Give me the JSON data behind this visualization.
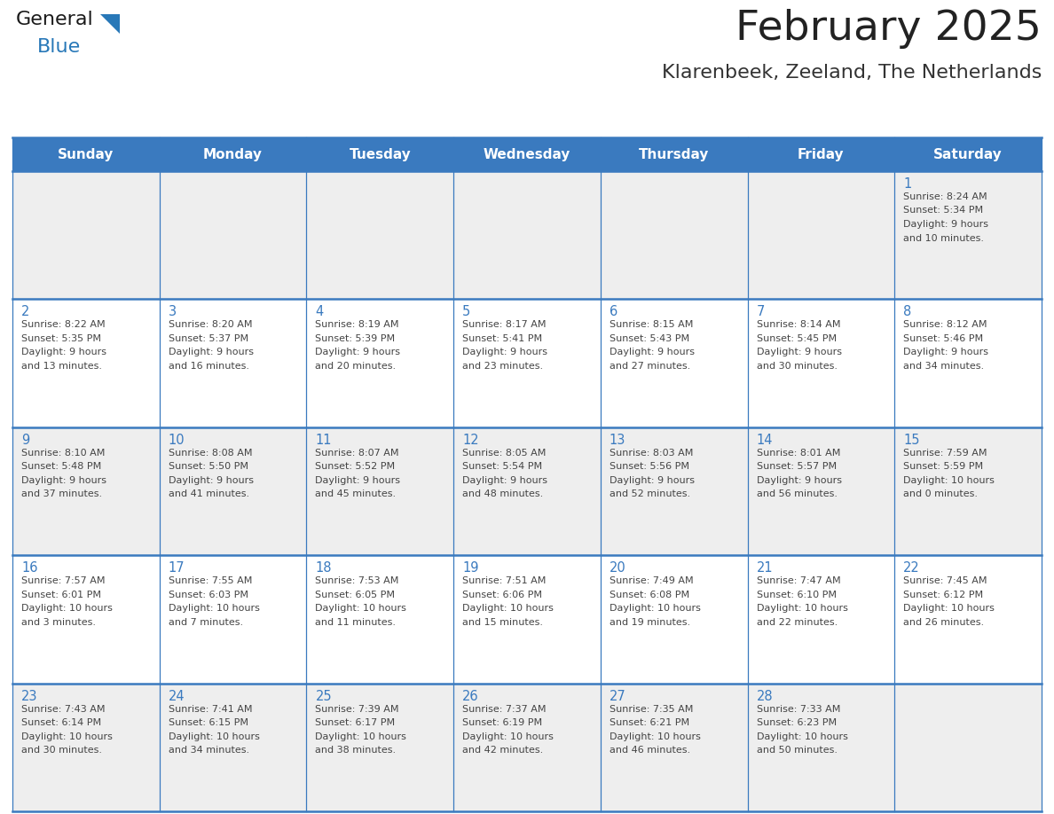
{
  "title": "February 2025",
  "subtitle": "Klarenbeek, Zeeland, The Netherlands",
  "header_bg": "#3a7abf",
  "header_text_color": "#ffffff",
  "cell_bg_light": "#eeeeee",
  "cell_bg_white": "#ffffff",
  "border_color": "#3a7abf",
  "day_headers": [
    "Sunday",
    "Monday",
    "Tuesday",
    "Wednesday",
    "Thursday",
    "Friday",
    "Saturday"
  ],
  "title_color": "#222222",
  "subtitle_color": "#333333",
  "day_number_color": "#3a7abf",
  "cell_text_color": "#444444",
  "logo_general_color": "#1a1a1a",
  "logo_blue_color": "#2878b8",
  "weeks": [
    [
      {
        "day": null,
        "sunrise": null,
        "sunset": null,
        "daylight_line1": null,
        "daylight_line2": null
      },
      {
        "day": null,
        "sunrise": null,
        "sunset": null,
        "daylight_line1": null,
        "daylight_line2": null
      },
      {
        "day": null,
        "sunrise": null,
        "sunset": null,
        "daylight_line1": null,
        "daylight_line2": null
      },
      {
        "day": null,
        "sunrise": null,
        "sunset": null,
        "daylight_line1": null,
        "daylight_line2": null
      },
      {
        "day": null,
        "sunrise": null,
        "sunset": null,
        "daylight_line1": null,
        "daylight_line2": null
      },
      {
        "day": null,
        "sunrise": null,
        "sunset": null,
        "daylight_line1": null,
        "daylight_line2": null
      },
      {
        "day": 1,
        "sunrise": "Sunrise: 8:24 AM",
        "sunset": "Sunset: 5:34 PM",
        "daylight_line1": "Daylight: 9 hours",
        "daylight_line2": "and 10 minutes."
      }
    ],
    [
      {
        "day": 2,
        "sunrise": "Sunrise: 8:22 AM",
        "sunset": "Sunset: 5:35 PM",
        "daylight_line1": "Daylight: 9 hours",
        "daylight_line2": "and 13 minutes."
      },
      {
        "day": 3,
        "sunrise": "Sunrise: 8:20 AM",
        "sunset": "Sunset: 5:37 PM",
        "daylight_line1": "Daylight: 9 hours",
        "daylight_line2": "and 16 minutes."
      },
      {
        "day": 4,
        "sunrise": "Sunrise: 8:19 AM",
        "sunset": "Sunset: 5:39 PM",
        "daylight_line1": "Daylight: 9 hours",
        "daylight_line2": "and 20 minutes."
      },
      {
        "day": 5,
        "sunrise": "Sunrise: 8:17 AM",
        "sunset": "Sunset: 5:41 PM",
        "daylight_line1": "Daylight: 9 hours",
        "daylight_line2": "and 23 minutes."
      },
      {
        "day": 6,
        "sunrise": "Sunrise: 8:15 AM",
        "sunset": "Sunset: 5:43 PM",
        "daylight_line1": "Daylight: 9 hours",
        "daylight_line2": "and 27 minutes."
      },
      {
        "day": 7,
        "sunrise": "Sunrise: 8:14 AM",
        "sunset": "Sunset: 5:45 PM",
        "daylight_line1": "Daylight: 9 hours",
        "daylight_line2": "and 30 minutes."
      },
      {
        "day": 8,
        "sunrise": "Sunrise: 8:12 AM",
        "sunset": "Sunset: 5:46 PM",
        "daylight_line1": "Daylight: 9 hours",
        "daylight_line2": "and 34 minutes."
      }
    ],
    [
      {
        "day": 9,
        "sunrise": "Sunrise: 8:10 AM",
        "sunset": "Sunset: 5:48 PM",
        "daylight_line1": "Daylight: 9 hours",
        "daylight_line2": "and 37 minutes."
      },
      {
        "day": 10,
        "sunrise": "Sunrise: 8:08 AM",
        "sunset": "Sunset: 5:50 PM",
        "daylight_line1": "Daylight: 9 hours",
        "daylight_line2": "and 41 minutes."
      },
      {
        "day": 11,
        "sunrise": "Sunrise: 8:07 AM",
        "sunset": "Sunset: 5:52 PM",
        "daylight_line1": "Daylight: 9 hours",
        "daylight_line2": "and 45 minutes."
      },
      {
        "day": 12,
        "sunrise": "Sunrise: 8:05 AM",
        "sunset": "Sunset: 5:54 PM",
        "daylight_line1": "Daylight: 9 hours",
        "daylight_line2": "and 48 minutes."
      },
      {
        "day": 13,
        "sunrise": "Sunrise: 8:03 AM",
        "sunset": "Sunset: 5:56 PM",
        "daylight_line1": "Daylight: 9 hours",
        "daylight_line2": "and 52 minutes."
      },
      {
        "day": 14,
        "sunrise": "Sunrise: 8:01 AM",
        "sunset": "Sunset: 5:57 PM",
        "daylight_line1": "Daylight: 9 hours",
        "daylight_line2": "and 56 minutes."
      },
      {
        "day": 15,
        "sunrise": "Sunrise: 7:59 AM",
        "sunset": "Sunset: 5:59 PM",
        "daylight_line1": "Daylight: 10 hours",
        "daylight_line2": "and 0 minutes."
      }
    ],
    [
      {
        "day": 16,
        "sunrise": "Sunrise: 7:57 AM",
        "sunset": "Sunset: 6:01 PM",
        "daylight_line1": "Daylight: 10 hours",
        "daylight_line2": "and 3 minutes."
      },
      {
        "day": 17,
        "sunrise": "Sunrise: 7:55 AM",
        "sunset": "Sunset: 6:03 PM",
        "daylight_line1": "Daylight: 10 hours",
        "daylight_line2": "and 7 minutes."
      },
      {
        "day": 18,
        "sunrise": "Sunrise: 7:53 AM",
        "sunset": "Sunset: 6:05 PM",
        "daylight_line1": "Daylight: 10 hours",
        "daylight_line2": "and 11 minutes."
      },
      {
        "day": 19,
        "sunrise": "Sunrise: 7:51 AM",
        "sunset": "Sunset: 6:06 PM",
        "daylight_line1": "Daylight: 10 hours",
        "daylight_line2": "and 15 minutes."
      },
      {
        "day": 20,
        "sunrise": "Sunrise: 7:49 AM",
        "sunset": "Sunset: 6:08 PM",
        "daylight_line1": "Daylight: 10 hours",
        "daylight_line2": "and 19 minutes."
      },
      {
        "day": 21,
        "sunrise": "Sunrise: 7:47 AM",
        "sunset": "Sunset: 6:10 PM",
        "daylight_line1": "Daylight: 10 hours",
        "daylight_line2": "and 22 minutes."
      },
      {
        "day": 22,
        "sunrise": "Sunrise: 7:45 AM",
        "sunset": "Sunset: 6:12 PM",
        "daylight_line1": "Daylight: 10 hours",
        "daylight_line2": "and 26 minutes."
      }
    ],
    [
      {
        "day": 23,
        "sunrise": "Sunrise: 7:43 AM",
        "sunset": "Sunset: 6:14 PM",
        "daylight_line1": "Daylight: 10 hours",
        "daylight_line2": "and 30 minutes."
      },
      {
        "day": 24,
        "sunrise": "Sunrise: 7:41 AM",
        "sunset": "Sunset: 6:15 PM",
        "daylight_line1": "Daylight: 10 hours",
        "daylight_line2": "and 34 minutes."
      },
      {
        "day": 25,
        "sunrise": "Sunrise: 7:39 AM",
        "sunset": "Sunset: 6:17 PM",
        "daylight_line1": "Daylight: 10 hours",
        "daylight_line2": "and 38 minutes."
      },
      {
        "day": 26,
        "sunrise": "Sunrise: 7:37 AM",
        "sunset": "Sunset: 6:19 PM",
        "daylight_line1": "Daylight: 10 hours",
        "daylight_line2": "and 42 minutes."
      },
      {
        "day": 27,
        "sunrise": "Sunrise: 7:35 AM",
        "sunset": "Sunset: 6:21 PM",
        "daylight_line1": "Daylight: 10 hours",
        "daylight_line2": "and 46 minutes."
      },
      {
        "day": 28,
        "sunrise": "Sunrise: 7:33 AM",
        "sunset": "Sunset: 6:23 PM",
        "daylight_line1": "Daylight: 10 hours",
        "daylight_line2": "and 50 minutes."
      },
      {
        "day": null,
        "sunrise": null,
        "sunset": null,
        "daylight_line1": null,
        "daylight_line2": null
      }
    ]
  ]
}
